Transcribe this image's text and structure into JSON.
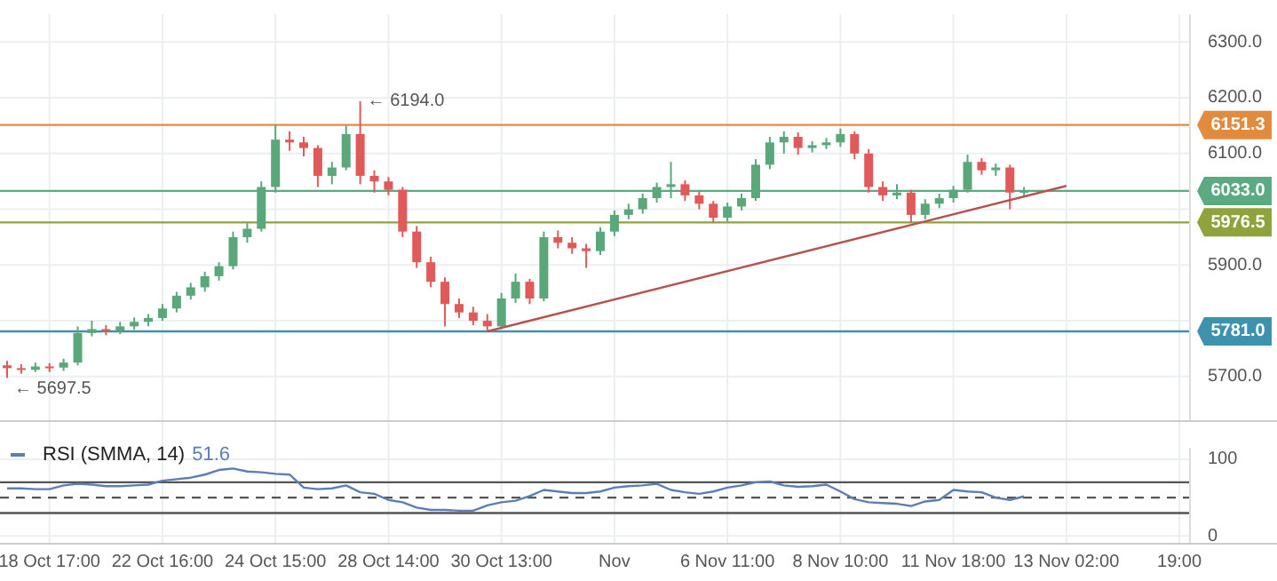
{
  "chart_data": [
    {
      "type": "candlestick",
      "categories": [
        null,
        null,
        null,
        null,
        null,
        null,
        null,
        null,
        null,
        null,
        null,
        null,
        null,
        null,
        null,
        null,
        null,
        null,
        null,
        null,
        null,
        null,
        null,
        null,
        null,
        null,
        null,
        null,
        null,
        null,
        null,
        null,
        null,
        null,
        null,
        null,
        null,
        null,
        null,
        null,
        null,
        null,
        null,
        null,
        null,
        null,
        null,
        null,
        null,
        null,
        null,
        null,
        null,
        null,
        null,
        null,
        null,
        null,
        null,
        null,
        null,
        null,
        null,
        null,
        null,
        null,
        null,
        null,
        null,
        null,
        null,
        null,
        null,
        null,
        null,
        null,
        null,
        null,
        null,
        null,
        null,
        null,
        null,
        null,
        null
      ],
      "ohlc": [
        [
          5720,
          5728,
          5697.5,
          5715
        ],
        [
          5715,
          5722,
          5705,
          5712
        ],
        [
          5712,
          5725,
          5708,
          5718
        ],
        [
          5718,
          5724,
          5708,
          5716
        ],
        [
          5716,
          5732,
          5710,
          5725
        ],
        [
          5725,
          5790,
          5720,
          5778
        ],
        [
          5778,
          5800,
          5772,
          5785
        ],
        [
          5785,
          5792,
          5774,
          5782
        ],
        [
          5782,
          5798,
          5776,
          5790
        ],
        [
          5790,
          5806,
          5784,
          5798
        ],
        [
          5798,
          5812,
          5790,
          5805
        ],
        [
          5805,
          5830,
          5800,
          5822
        ],
        [
          5822,
          5852,
          5815,
          5845
        ],
        [
          5845,
          5868,
          5838,
          5860
        ],
        [
          5860,
          5888,
          5852,
          5880
        ],
        [
          5880,
          5905,
          5872,
          5898
        ],
        [
          5898,
          5960,
          5892,
          5950
        ],
        [
          5950,
          5975,
          5940,
          5965
        ],
        [
          5965,
          6050,
          5960,
          6040
        ],
        [
          6040,
          6151.3,
          6030,
          6125
        ],
        [
          6125,
          6140,
          6105,
          6120
        ],
        [
          6120,
          6130,
          6095,
          6110
        ],
        [
          6110,
          6115,
          6040,
          6060
        ],
        [
          6060,
          6085,
          6045,
          6075
        ],
        [
          6075,
          6150,
          6070,
          6135
        ],
        [
          6135,
          6194,
          6045,
          6060
        ],
        [
          6060,
          6070,
          6030,
          6050
        ],
        [
          6050,
          6058,
          6025,
          6035
        ],
        [
          6035,
          6040,
          5950,
          5960
        ],
        [
          5960,
          5970,
          5895,
          5905
        ],
        [
          5905,
          5915,
          5860,
          5870
        ],
        [
          5870,
          5878,
          5790,
          5830
        ],
        [
          5830,
          5840,
          5805,
          5815
        ],
        [
          5815,
          5825,
          5792,
          5800
        ],
        [
          5800,
          5812,
          5781,
          5790
        ],
        [
          5790,
          5850,
          5785,
          5840
        ],
        [
          5840,
          5885,
          5832,
          5870
        ],
        [
          5870,
          5875,
          5830,
          5840
        ],
        [
          5840,
          5960,
          5835,
          5950
        ],
        [
          5950,
          5962,
          5930,
          5940
        ],
        [
          5940,
          5950,
          5920,
          5930
        ],
        [
          5930,
          5938,
          5895,
          5925
        ],
        [
          5925,
          5968,
          5918,
          5960
        ],
        [
          5960,
          5998,
          5952,
          5990
        ],
        [
          5990,
          6010,
          5982,
          6000
        ],
        [
          6000,
          6028,
          5992,
          6020
        ],
        [
          6020,
          6048,
          6012,
          6040
        ],
        [
          6040,
          6085,
          6020,
          6045
        ],
        [
          6045,
          6052,
          6015,
          6025
        ],
        [
          6025,
          6032,
          6000,
          6010
        ],
        [
          6010,
          6015,
          5976.5,
          5985
        ],
        [
          5985,
          6012,
          5978,
          6005
        ],
        [
          6005,
          6028,
          5998,
          6020
        ],
        [
          6020,
          6090,
          6015,
          6080
        ],
        [
          6080,
          6130,
          6072,
          6120
        ],
        [
          6120,
          6140,
          6100,
          6130
        ],
        [
          6130,
          6138,
          6098,
          6110
        ],
        [
          6110,
          6122,
          6102,
          6115
        ],
        [
          6115,
          6128,
          6108,
          6120
        ],
        [
          6120,
          6145,
          6112,
          6135
        ],
        [
          6135,
          6140,
          6090,
          6100
        ],
        [
          6100,
          6108,
          6030,
          6040
        ],
        [
          6040,
          6050,
          6015,
          6025
        ],
        [
          6025,
          6045,
          6018,
          6030
        ],
        [
          6030,
          6035,
          5976,
          5990
        ],
        [
          5990,
          6018,
          5982,
          6010
        ],
        [
          6010,
          6028,
          6002,
          6020
        ],
        [
          6020,
          6042,
          6012,
          6035
        ],
        [
          6035,
          6098,
          6030,
          6085
        ],
        [
          6085,
          6092,
          6062,
          6070
        ],
        [
          6070,
          6082,
          6060,
          6075
        ],
        [
          6075,
          6080,
          6000,
          6030
        ],
        [
          6030,
          6040,
          6022,
          6033
        ],
        null,
        null,
        null,
        null,
        null,
        null,
        null,
        null,
        null,
        null,
        null,
        null
      ],
      "series": [
        {
          "type": "line",
          "color": "#b5534f",
          "values": [
            null,
            null,
            null,
            null,
            null,
            null,
            null,
            null,
            null,
            null,
            null,
            null,
            null,
            null,
            null,
            null,
            null,
            null,
            null,
            null,
            null,
            null,
            null,
            null,
            null,
            null,
            null,
            null,
            null,
            null,
            null,
            null,
            null,
            null,
            5781,
            null,
            null,
            null,
            null,
            null,
            null,
            null,
            null,
            null,
            null,
            null,
            null,
            null,
            null,
            null,
            null,
            null,
            null,
            null,
            null,
            null,
            null,
            null,
            null,
            null,
            null,
            null,
            null,
            null,
            null,
            null,
            null,
            null,
            null,
            null,
            null,
            null,
            null,
            null,
            null,
            6042,
            null,
            null,
            null,
            null,
            null,
            null,
            null,
            null,
            null
          ]
        }
      ],
      "ylim": [
        5620,
        6350
      ],
      "yticks": [
        {
          "value": 5700,
          "label": "5700.0"
        },
        {
          "value": 5800,
          "label": null
        },
        {
          "value": 5900,
          "label": "5900.0"
        },
        {
          "value": 6000,
          "label": null
        },
        {
          "value": 6100,
          "label": "6100.0"
        },
        {
          "value": 6200,
          "label": "6200.0"
        },
        {
          "value": 6300,
          "label": "6300.0"
        }
      ],
      "ref_lines": [
        {
          "axis": "y",
          "value": 6151.3,
          "label": "6151.3",
          "color": "#e38b3c"
        },
        {
          "axis": "y",
          "value": 6033,
          "label": "6033.0",
          "color": "#5aab82"
        },
        {
          "axis": "y",
          "value": 5976.5,
          "label": "5976.5",
          "color": "#8ea33c"
        },
        {
          "axis": "y",
          "value": 5781,
          "label": "5781.0",
          "color": "#3d92ad"
        }
      ],
      "annotations": [
        "← 6194.0",
        "← 5697.5"
      ],
      "grid": true,
      "tick_labels": "y"
    },
    {
      "type": "line",
      "categories": [
        null,
        null,
        null,
        "18 Oct 17:00",
        null,
        null,
        null,
        null,
        null,
        null,
        null,
        "22 Oct 16:00",
        null,
        null,
        null,
        null,
        null,
        null,
        null,
        "24 Oct 15:00",
        null,
        null,
        null,
        null,
        null,
        null,
        null,
        "28 Oct 14:00",
        null,
        null,
        null,
        null,
        null,
        null,
        null,
        "30 Oct 13:00",
        null,
        null,
        null,
        null,
        null,
        null,
        null,
        "Nov",
        null,
        null,
        null,
        null,
        null,
        null,
        null,
        "6 Nov 11:00",
        null,
        null,
        null,
        null,
        null,
        null,
        null,
        "8 Nov 10:00",
        null,
        null,
        null,
        null,
        null,
        null,
        null,
        "11 Nov 18:00",
        null,
        null,
        null,
        null,
        null,
        null,
        null,
        "13 Nov 02:00",
        null,
        null,
        null,
        null,
        null,
        null,
        null,
        "19:00",
        null
      ],
      "series": [
        {
          "name": "RSI (SMMA, 14)",
          "color": "#5b7fb5",
          "values": [
            62,
            62,
            61,
            61,
            66,
            68,
            67,
            65,
            65,
            66,
            67,
            72,
            74,
            76,
            80,
            86,
            88,
            84,
            83,
            81,
            80,
            63,
            61,
            62,
            66,
            57,
            55,
            47,
            44,
            37,
            34,
            34,
            33,
            33,
            40,
            44,
            46,
            52,
            60,
            58,
            56,
            56,
            58,
            63,
            65,
            66,
            68,
            60,
            57,
            55,
            58,
            63,
            66,
            70,
            71,
            66,
            64,
            65,
            67,
            58,
            48,
            44,
            43,
            42,
            39,
            45,
            47,
            60,
            58,
            57,
            50,
            47,
            51.6,
            null,
            null,
            null,
            null,
            null,
            null,
            null,
            null,
            null,
            null,
            null,
            null
          ]
        }
      ],
      "ylim": [
        -10,
        115
      ],
      "yticks": [
        0,
        100
      ],
      "ref_lines": [
        {
          "axis": "y",
          "value": 70,
          "color": "#555555",
          "line_style": "solid"
        },
        {
          "axis": "y",
          "value": 50,
          "color": "#555555",
          "line_style": "dashed"
        },
        {
          "axis": "y",
          "value": 30,
          "color": "#555555",
          "line_style": "solid"
        }
      ],
      "annotations": [
        "51.6"
      ],
      "grid": true,
      "legend": "top left"
    }
  ]
}
